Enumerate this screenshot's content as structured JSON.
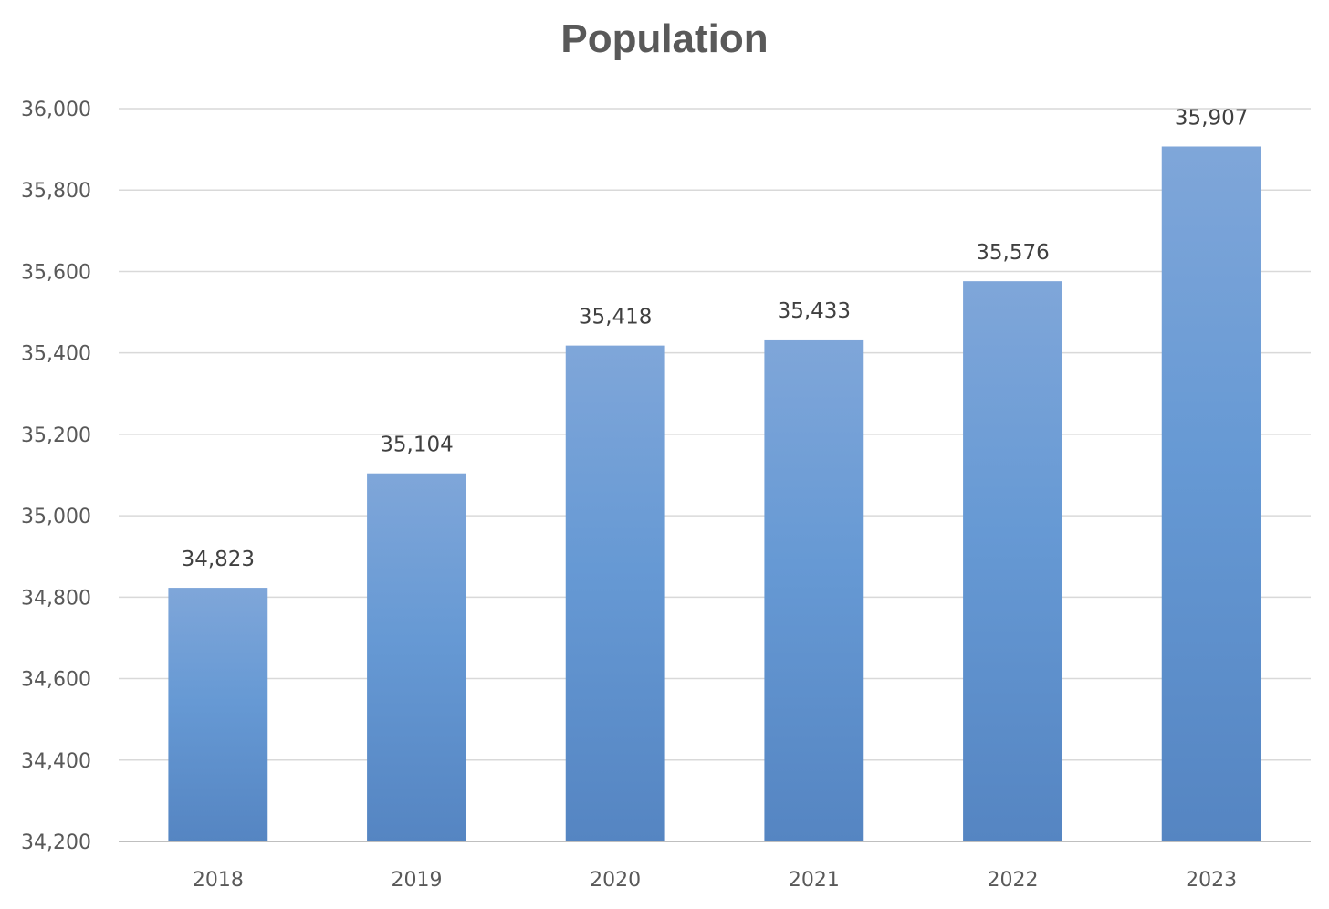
{
  "chart_data": {
    "type": "bar",
    "title": "Population",
    "xlabel": "",
    "ylabel": "",
    "categories": [
      "2018",
      "2019",
      "2020",
      "2021",
      "2022",
      "2023"
    ],
    "values": [
      34823,
      35104,
      35418,
      35433,
      35576,
      35907
    ],
    "data_labels": [
      "34,823",
      "35,104",
      "35,418",
      "35,433",
      "35,576",
      "35,907"
    ],
    "ylim": [
      34200,
      36000
    ],
    "yticks": [
      34200,
      34400,
      34600,
      34800,
      35000,
      35200,
      35400,
      35600,
      35800,
      36000
    ],
    "ytick_labels": [
      "34,200",
      "34,400",
      "34,600",
      "34,800",
      "35,000",
      "35,200",
      "35,400",
      "35,600",
      "35,800",
      "36,000"
    ],
    "grid": true,
    "legend": "none",
    "colors": {
      "bar_top": "#7FA6D9",
      "bar_mid": "#6699D4",
      "bar_bottom": "#5585C2",
      "grid": "#D9D9D9",
      "text": "#595959"
    }
  }
}
